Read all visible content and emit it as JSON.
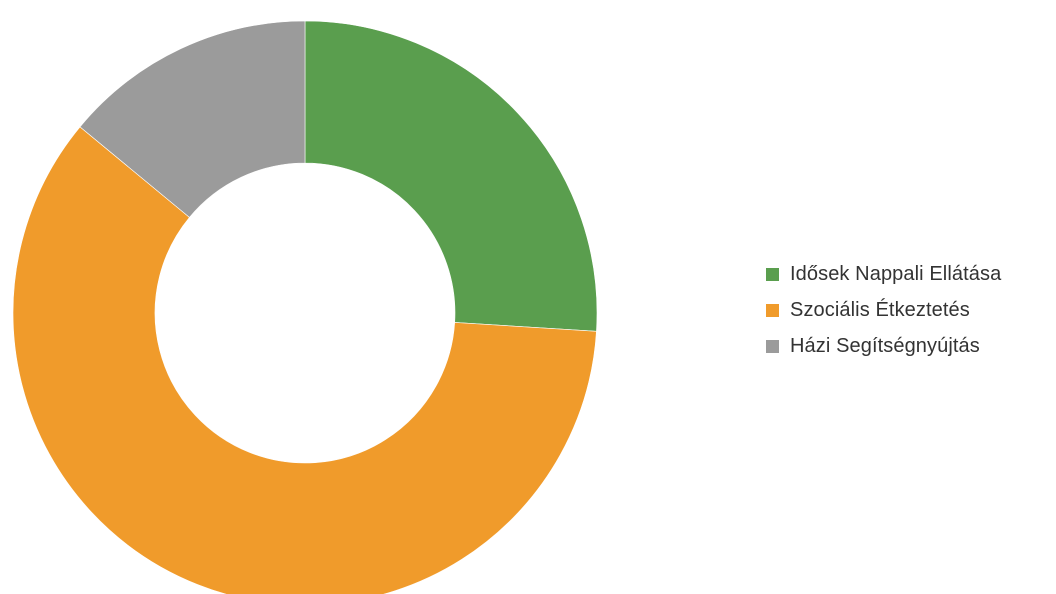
{
  "chart_data": {
    "type": "pie",
    "variant": "donut",
    "title": "",
    "categories": [
      "Idősek Nappali Ellátása",
      "Szociális Étkeztetés",
      "Házi Segítségnyújtás"
    ],
    "values": [
      26,
      60,
      14
    ],
    "colors": [
      "#5a9e4e",
      "#f09b2b",
      "#9b9b9b"
    ],
    "start_angle_deg": 0,
    "direction": "clockwise",
    "legend_position": "right"
  }
}
